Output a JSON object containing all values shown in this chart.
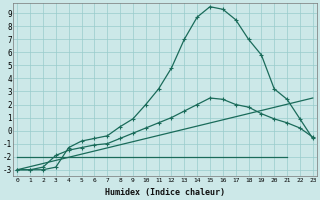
{
  "xlabel": "Humidex (Indice chaleur)",
  "bg_color": "#cce8e8",
  "grid_color": "#99cccc",
  "line_color": "#1a6b5a",
  "x_ticks": [
    0,
    1,
    2,
    3,
    4,
    5,
    6,
    7,
    8,
    9,
    10,
    11,
    12,
    13,
    14,
    15,
    16,
    17,
    18,
    19,
    20,
    21,
    22,
    23
  ],
  "y_ticks": [
    -3,
    -2,
    -1,
    0,
    1,
    2,
    3,
    4,
    5,
    6,
    7,
    8,
    9
  ],
  "xlim": [
    -0.3,
    23.3
  ],
  "ylim": [
    -3.5,
    9.8
  ],
  "line1_x": [
    0,
    1,
    2,
    3,
    4,
    5,
    6,
    7,
    8,
    9,
    10,
    11,
    12,
    13,
    14,
    15,
    16,
    17,
    18,
    19,
    20,
    21,
    22,
    23
  ],
  "line1_y": [
    -3,
    -3,
    -3,
    -2.8,
    -1.3,
    -0.8,
    -0.6,
    -0.4,
    0.3,
    0.9,
    2.0,
    3.2,
    4.8,
    7.0,
    8.7,
    9.5,
    9.3,
    8.5,
    7.0,
    5.8,
    3.2,
    2.4,
    0.9,
    -0.6
  ],
  "line2_x": [
    0,
    1,
    2,
    3,
    4,
    5,
    6,
    7,
    8,
    9,
    10,
    11,
    12,
    13,
    14,
    15,
    16,
    17,
    18,
    19,
    20,
    21,
    22,
    23
  ],
  "line2_y": [
    -3.0,
    -3.0,
    -2.8,
    -1.9,
    -1.5,
    -1.3,
    -1.1,
    -1.0,
    -0.6,
    -0.2,
    0.2,
    0.6,
    1.0,
    1.5,
    2.0,
    2.5,
    2.4,
    2.0,
    1.8,
    1.3,
    0.9,
    0.6,
    0.2,
    -0.5
  ],
  "flat_line_x": [
    0,
    21
  ],
  "flat_line_y": [
    -2.0,
    -2.0
  ],
  "diag_line_x": [
    0,
    23
  ],
  "diag_line_y": [
    -3.0,
    2.5
  ]
}
